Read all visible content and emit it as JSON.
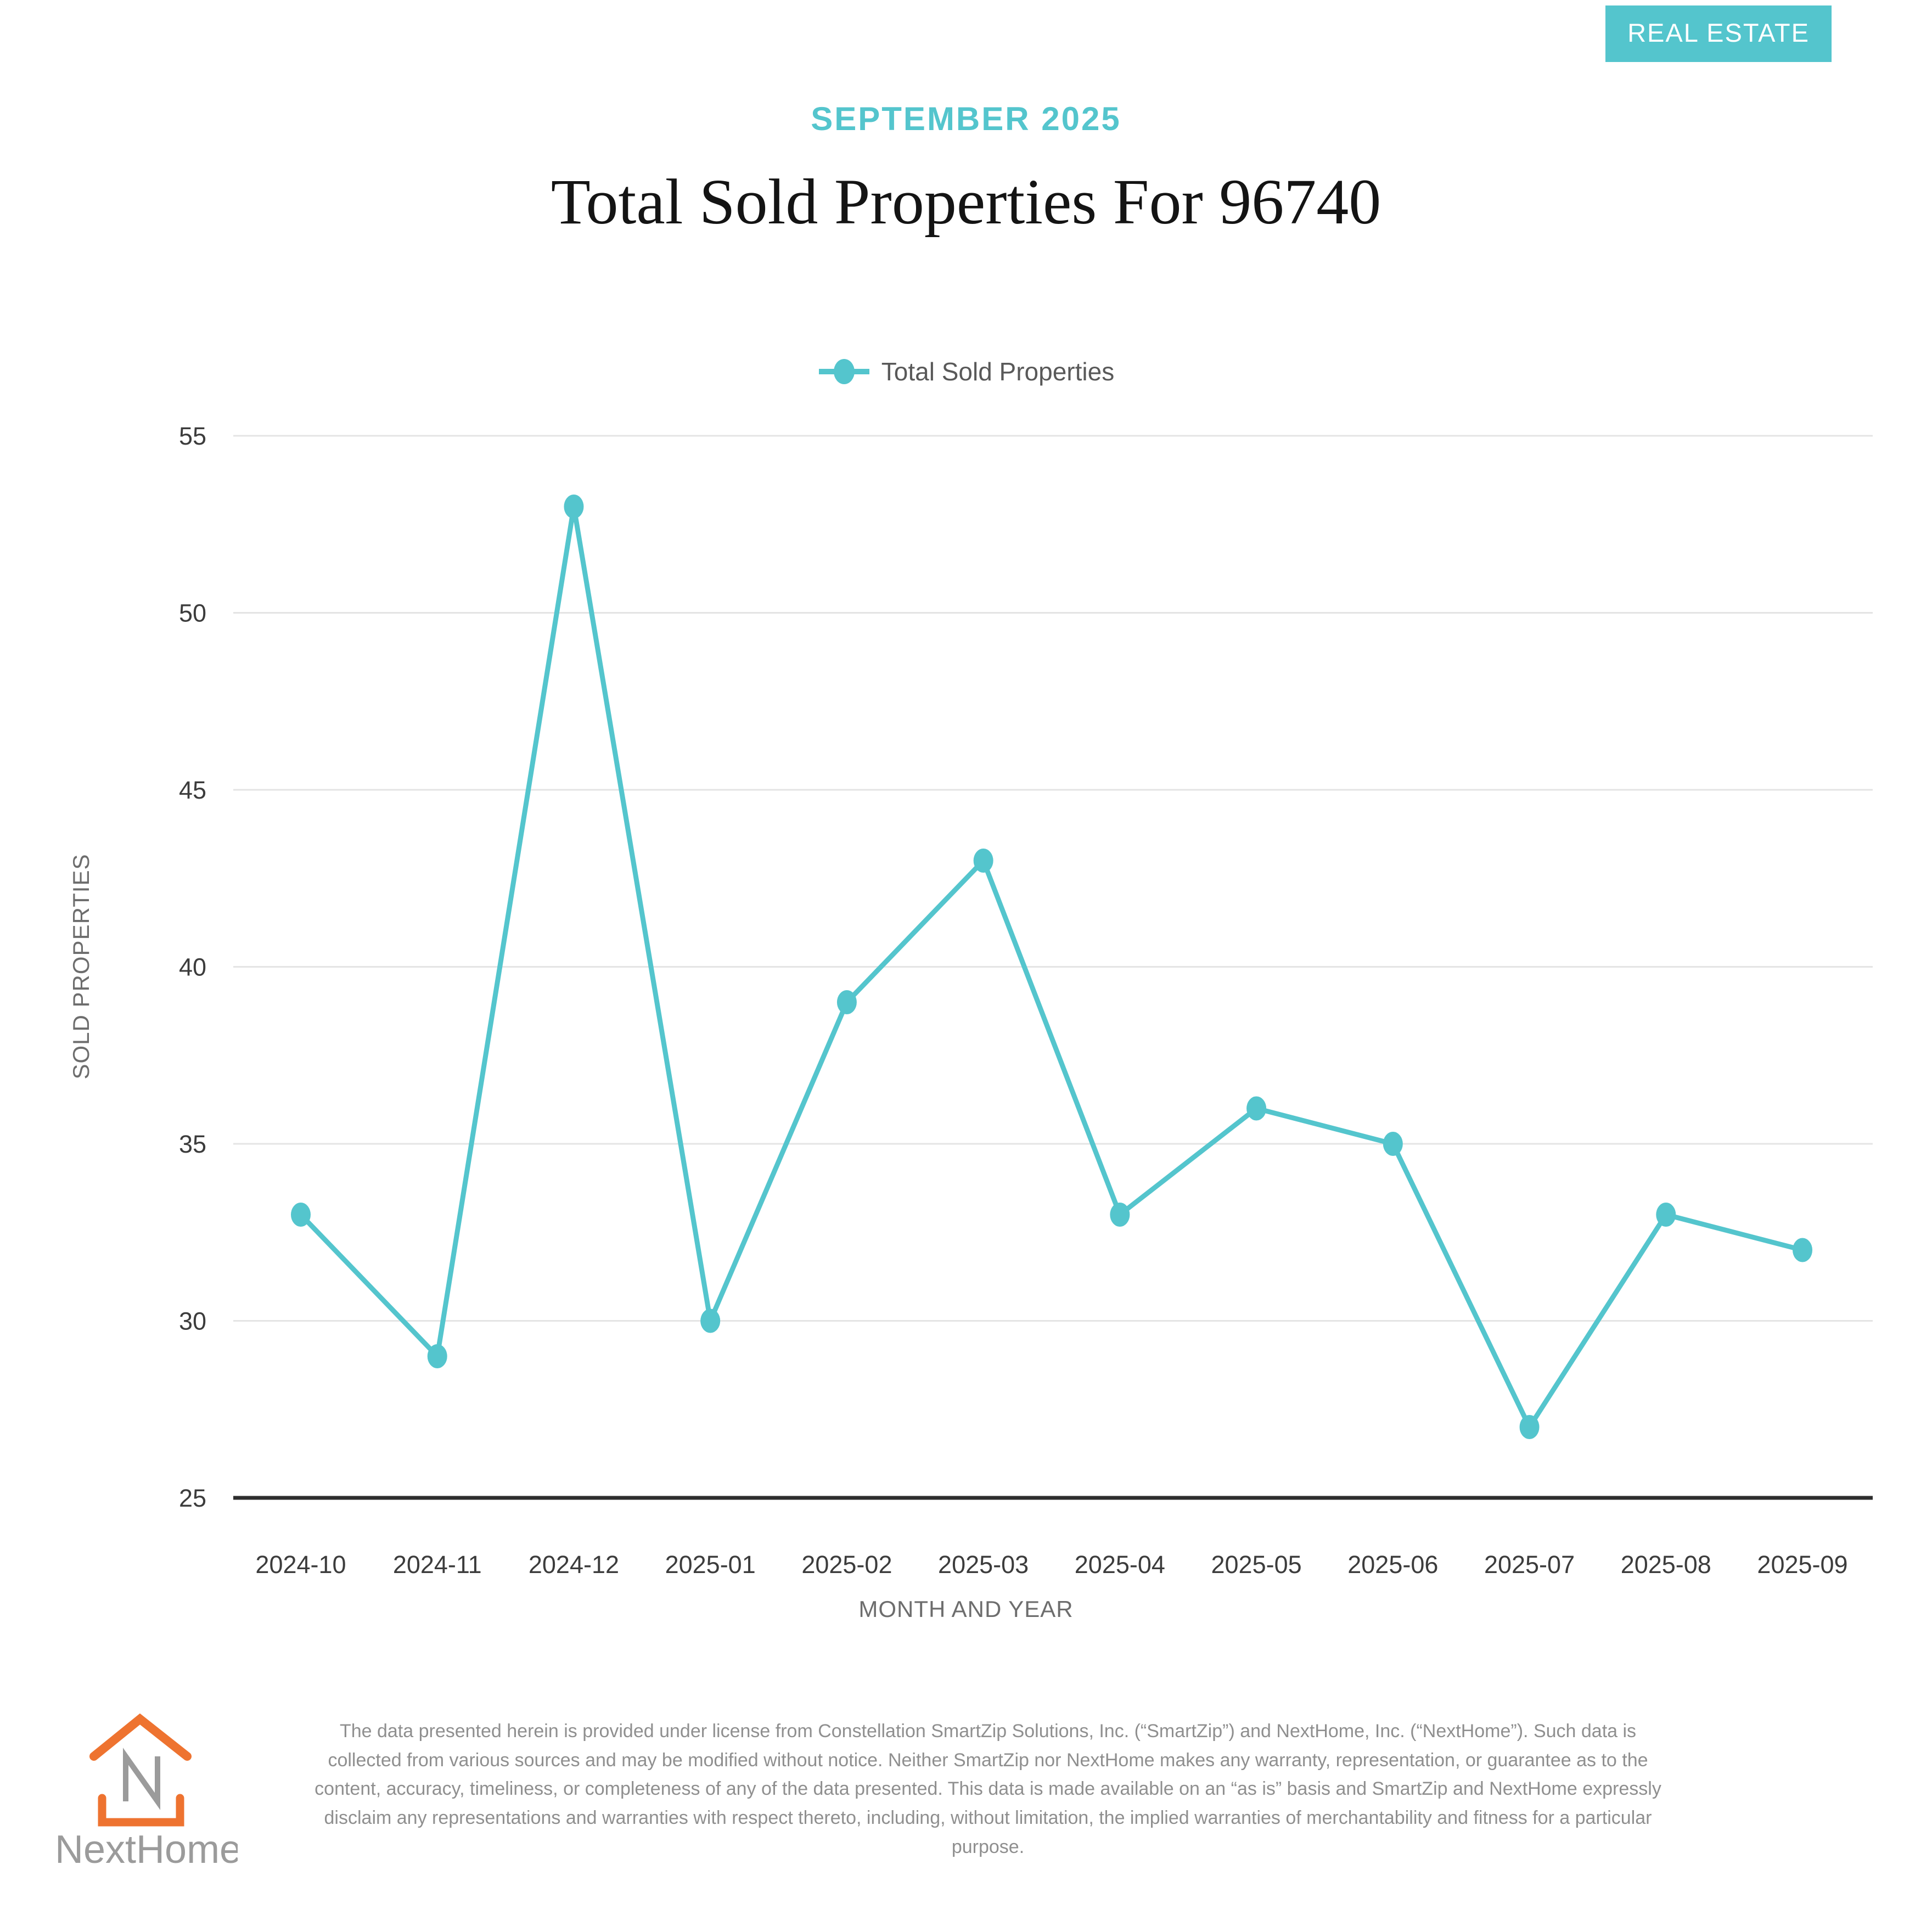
{
  "badge": {
    "label": "REAL ESTATE"
  },
  "header": {
    "kicker": "SEPTEMBER 2025",
    "title": "Total Sold Properties For 96740"
  },
  "legend": {
    "label": "Total Sold Properties"
  },
  "chart_data": {
    "type": "line",
    "title": "Total Sold Properties For 96740",
    "categories": [
      "2024-10",
      "2024-11",
      "2024-12",
      "2025-01",
      "2025-02",
      "2025-03",
      "2025-04",
      "2025-05",
      "2025-06",
      "2025-07",
      "2025-08",
      "2025-09"
    ],
    "series": [
      {
        "name": "Total Sold Properties",
        "values": [
          33,
          29,
          53,
          30,
          39,
          43,
          33,
          36,
          35,
          27,
          33,
          32
        ]
      }
    ],
    "xlabel": "MONTH AND YEAR",
    "ylabel": "SOLD PROPERTIES",
    "ylim": [
      25,
      55
    ],
    "yticks": [
      25,
      30,
      35,
      40,
      45,
      50,
      55
    ],
    "grid": true,
    "legend_position": "top",
    "line_color": "#54c5cd",
    "gridline_color": "#e4e4e4",
    "axis_line_color": "#2e2e2e",
    "tick_label_color": "#3c3c3c"
  },
  "axes": {
    "x_title": "MONTH AND YEAR",
    "y_title": "SOLD PROPERTIES"
  },
  "footer": {
    "logo_text": "NextHome",
    "logo_reg": "®",
    "disclaimer": "The data presented herein is provided under license from Constellation SmartZip Solutions, Inc. (“SmartZip”) and NextHome, Inc. (“NextHome”). Such data is collected from various sources and may be modified without notice. Neither SmartZip nor NextHome makes any warranty, representation, or guarantee as to the content, accuracy, timeliness, or completeness of any of the data presented. This data is made available on an “as is” basis and SmartZip and NextHome expressly disclaim any representations and warranties with respect thereto, including, without limitation, the implied warranties of merchantability and fitness for a particular purpose."
  },
  "colors": {
    "teal": "#54c5cd",
    "logo_orange": "#ee7330",
    "logo_gray": "#9b9b9b"
  }
}
